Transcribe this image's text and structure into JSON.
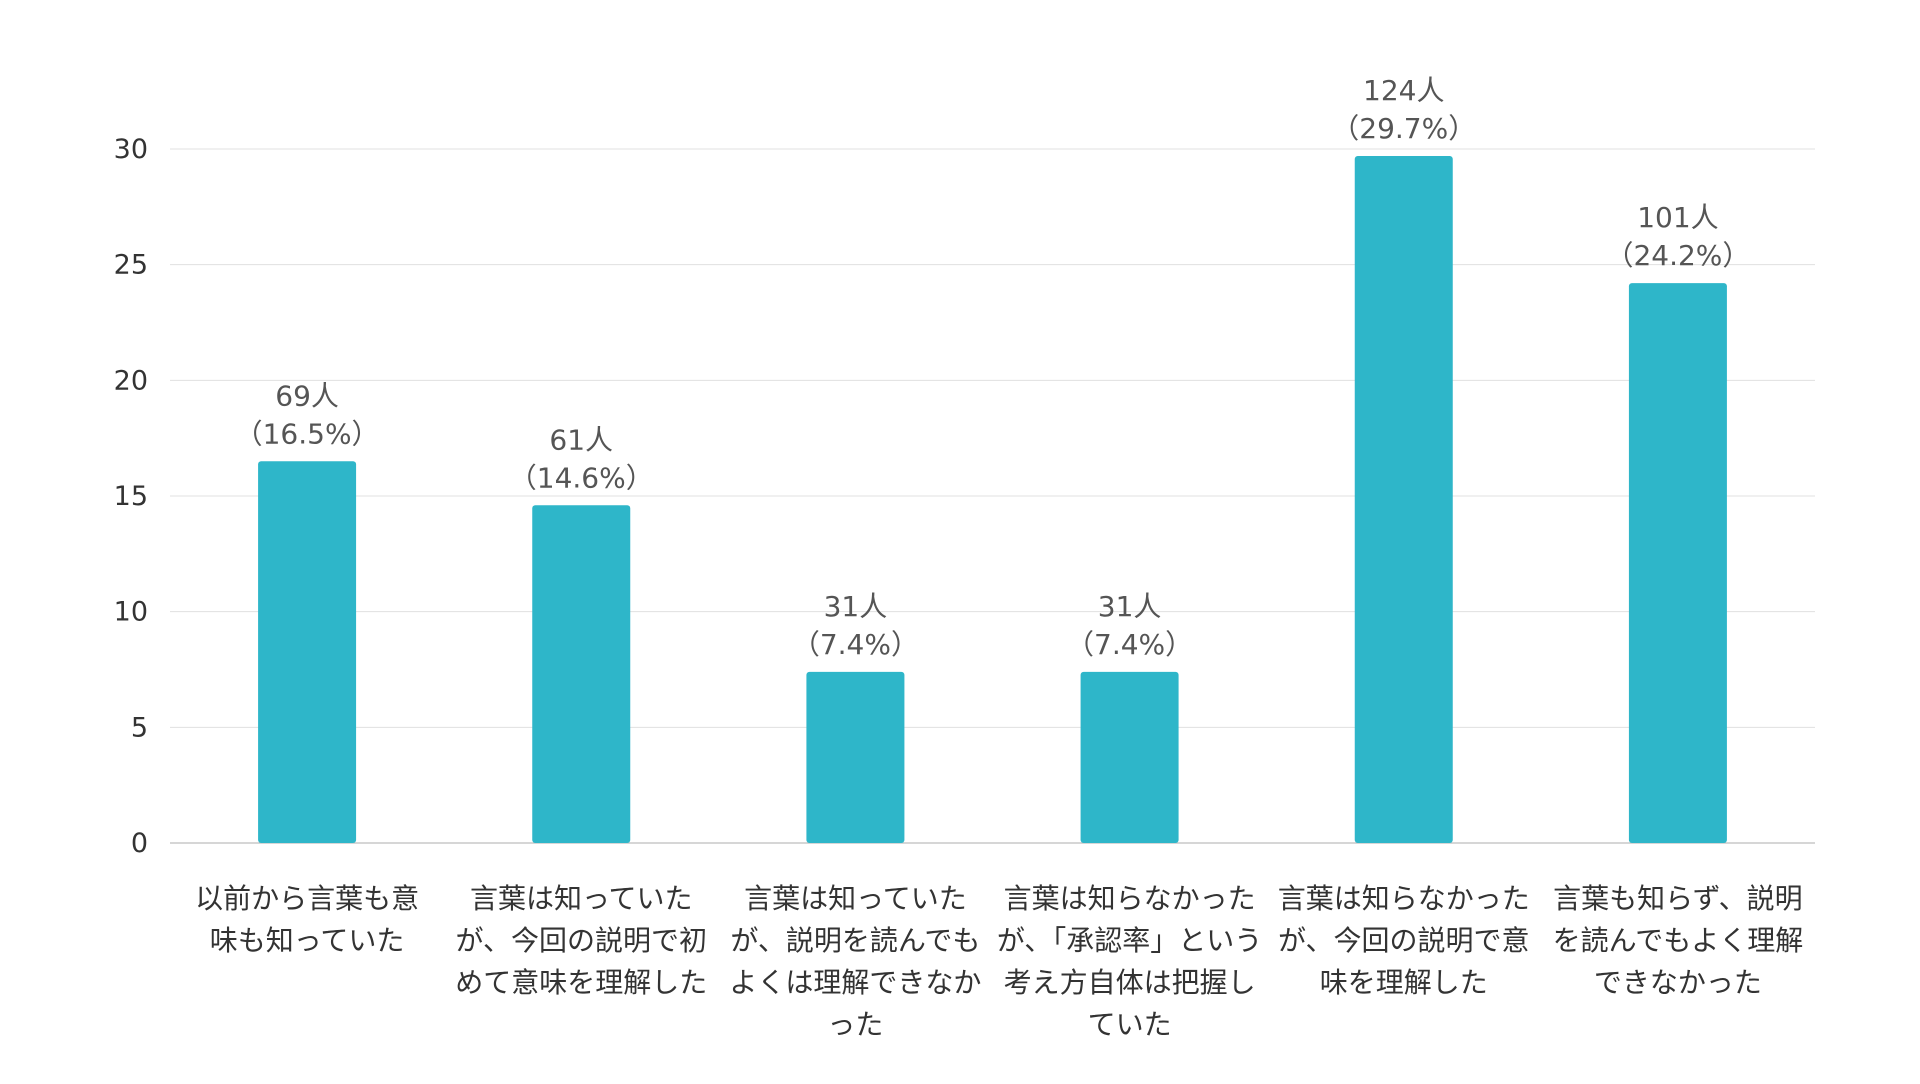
{
  "colors": {
    "bar": "#2eb6c9",
    "grid": "#e0e0e0",
    "axis": "#c8c8c8",
    "text": "#333333",
    "label": "#555555"
  },
  "chart_data": {
    "type": "bar",
    "title": "",
    "xlabel": "",
    "ylabel": "",
    "ylim": [
      0,
      30
    ],
    "yticks": [
      0,
      5,
      10,
      15,
      20,
      25,
      30
    ],
    "grid": true,
    "legend": "none",
    "categories": [
      [
        "以前から言葉も意",
        "味も知っていた"
      ],
      [
        "言葉は知っていた",
        "が、今回の説明で初",
        "めて意味を理解した"
      ],
      [
        "言葉は知っていた",
        "が、説明を読んでも",
        "よくは理解できなか",
        "った"
      ],
      [
        "言葉は知らなかった",
        "が、「承認率」という",
        "考え方自体は把握し",
        "ていた"
      ],
      [
        "言葉は知らなかった",
        "が、今回の説明で意",
        "味を理解した"
      ],
      [
        "言葉も知らず、説明",
        "を読んでもよく理解",
        "できなかった"
      ]
    ],
    "values": [
      16.5,
      14.6,
      7.4,
      7.4,
      29.7,
      24.2
    ],
    "data_labels": [
      [
        "69人",
        "（16.5%）"
      ],
      [
        "61人",
        "（14.6%）"
      ],
      [
        "31人",
        "（7.4%）"
      ],
      [
        "31人",
        "（7.4%）"
      ],
      [
        "124人",
        "（29.7%）"
      ],
      [
        "101人",
        "（24.2%）"
      ]
    ]
  }
}
